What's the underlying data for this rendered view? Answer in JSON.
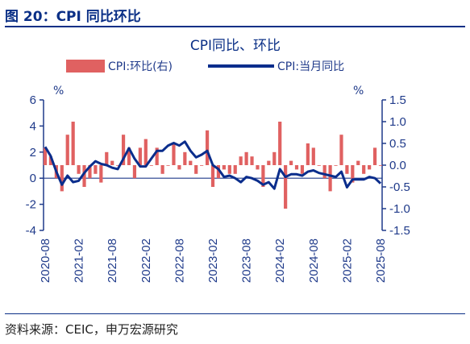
{
  "figure_title": "图 20：CPI 同比环比",
  "source_text": "资料来源：CEIC，申万宏源研究",
  "colors": {
    "bar": "#e06161",
    "line": "#0a2d8c",
    "axis": "#1f3a8a",
    "title": "#0a2f86"
  },
  "chart_data": {
    "type": "bar+line",
    "title": "CPI同比、环比",
    "left_unit": "%",
    "right_unit": "%",
    "legend": [
      {
        "name": "CPI:环比(右)",
        "kind": "bar"
      },
      {
        "name": "CPI:当月同比",
        "kind": "line"
      }
    ],
    "legend_position": "top",
    "ylim_left": [
      -4,
      6
    ],
    "yticks_left": [
      "6",
      "4",
      "2",
      "0",
      "-2",
      "-4"
    ],
    "ylim_right": [
      -1.5,
      1.5
    ],
    "yticks_right": [
      "1.5",
      "1.0",
      "0.5",
      "0.0",
      "-0.5",
      "-1.0",
      "-1.5"
    ],
    "x_ticks": [
      "2020-08",
      "2021-02",
      "2021-08",
      "2022-02",
      "2022-08",
      "2023-02",
      "2023-08",
      "2024-02",
      "2024-08",
      "2025-02",
      "2025-08"
    ],
    "months": [
      "2020-08",
      "2020-09",
      "2020-10",
      "2020-11",
      "2020-12",
      "2021-01",
      "2021-02",
      "2021-03",
      "2021-04",
      "2021-05",
      "2021-06",
      "2021-07",
      "2021-08",
      "2021-09",
      "2021-10",
      "2021-11",
      "2021-12",
      "2022-01",
      "2022-02",
      "2022-03",
      "2022-04",
      "2022-05",
      "2022-06",
      "2022-07",
      "2022-08",
      "2022-09",
      "2022-10",
      "2022-11",
      "2022-12",
      "2023-01",
      "2023-02",
      "2023-03",
      "2023-04",
      "2023-05",
      "2023-06",
      "2023-07",
      "2023-08",
      "2023-09",
      "2023-10",
      "2023-11",
      "2023-12",
      "2024-01",
      "2024-02",
      "2024-03",
      "2024-04",
      "2024-05",
      "2024-06",
      "2024-07",
      "2024-08",
      "2024-09",
      "2024-10",
      "2024-11",
      "2024-12",
      "2025-01",
      "2025-02",
      "2025-03",
      "2025-04",
      "2025-05",
      "2025-06",
      "2025-07",
      "2025-08"
    ],
    "series": [
      {
        "name": "CPI:环比(右)",
        "axis": "right",
        "values": [
          0.4,
          0.2,
          -0.3,
          -0.6,
          0.7,
          1.0,
          -0.2,
          -0.5,
          -0.3,
          -0.2,
          -0.4,
          0.3,
          0.1,
          0.0,
          0.7,
          0.4,
          -0.3,
          0.4,
          0.6,
          0.0,
          0.4,
          -0.2,
          0.0,
          0.5,
          -0.1,
          0.3,
          0.1,
          -0.2,
          0.0,
          0.8,
          -0.5,
          -0.3,
          -0.1,
          -0.2,
          -0.2,
          0.2,
          0.3,
          0.2,
          -0.1,
          -0.5,
          0.1,
          0.3,
          1.0,
          -1.0,
          0.1,
          -0.1,
          -0.2,
          0.5,
          0.4,
          0.0,
          -0.3,
          -0.6,
          0.0,
          0.7,
          -0.2,
          -0.4,
          0.1,
          -0.2,
          -0.1,
          0.4,
          0.0
        ]
      },
      {
        "name": "CPI:当月同比",
        "axis": "left",
        "values": [
          2.4,
          1.7,
          0.5,
          -0.5,
          0.2,
          -0.3,
          -0.2,
          0.4,
          0.9,
          1.3,
          1.1,
          1.0,
          0.8,
          0.7,
          1.5,
          2.3,
          1.5,
          0.9,
          0.9,
          1.5,
          2.1,
          2.1,
          2.5,
          2.7,
          2.5,
          2.8,
          2.1,
          1.6,
          1.8,
          2.1,
          1.0,
          0.7,
          0.1,
          0.2,
          0.0,
          -0.3,
          0.1,
          0.0,
          -0.2,
          -0.5,
          -0.3,
          -0.8,
          0.7,
          0.1,
          0.3,
          0.3,
          0.2,
          0.5,
          0.6,
          0.4,
          0.3,
          0.2,
          0.1,
          0.5,
          -0.7,
          -0.1,
          -0.1,
          -0.1,
          0.1,
          0.0,
          -0.4
        ]
      }
    ]
  }
}
